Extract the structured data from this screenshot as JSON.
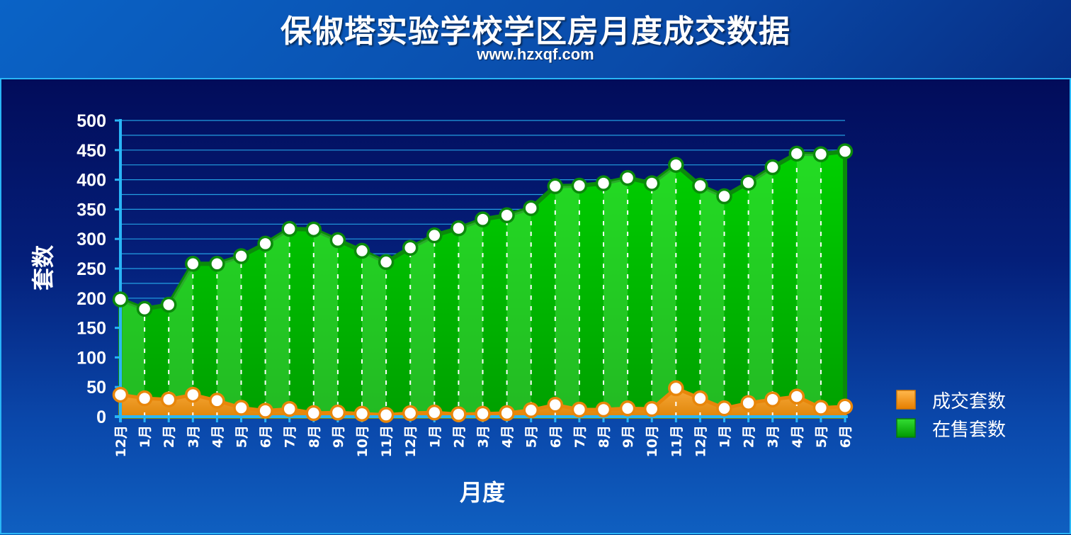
{
  "title": "保俶塔实验学校学区房月度成交数据",
  "subtitle": "www.hzxqf.com",
  "colors": {
    "sold": "#f39c12",
    "listed": "#00b800",
    "grid": "#29b6f6",
    "axis": "#29b6f6",
    "marker_fill": "#ffffff"
  },
  "chart_data": {
    "type": "area",
    "xlabel": "月度",
    "ylabel": "套数",
    "ylim": [
      0,
      500
    ],
    "yticks": [
      0,
      50,
      100,
      150,
      200,
      250,
      300,
      350,
      400,
      450,
      500
    ],
    "grid": true,
    "legend_position": "right",
    "categories": [
      "12月",
      "1月",
      "2月",
      "3月",
      "4月",
      "5月",
      "6月",
      "7月",
      "8月",
      "9月",
      "10月",
      "11月",
      "12月",
      "1月",
      "2月",
      "3月",
      "4月",
      "5月",
      "6月",
      "7月",
      "8月",
      "9月",
      "10月",
      "11月",
      "12月",
      "1月",
      "2月",
      "3月",
      "4月",
      "5月",
      "6月"
    ],
    "series": [
      {
        "name": "成交套数",
        "color": "#f39c12",
        "values": [
          37,
          31,
          29,
          37,
          27,
          15,
          10,
          13,
          6,
          7,
          5,
          3,
          6,
          7,
          4,
          5,
          6,
          11,
          20,
          12,
          12,
          14,
          13,
          48,
          31,
          14,
          23,
          29,
          34,
          15,
          17
        ]
      },
      {
        "name": "在售套数",
        "color": "#00b800",
        "values": [
          198,
          182,
          189,
          258,
          258,
          271,
          292,
          317,
          316,
          298,
          280,
          261,
          285,
          306,
          318,
          333,
          340,
          352,
          389,
          390,
          394,
          403,
          394,
          425,
          390,
          372,
          395,
          421,
          444,
          443,
          448
        ]
      }
    ]
  }
}
